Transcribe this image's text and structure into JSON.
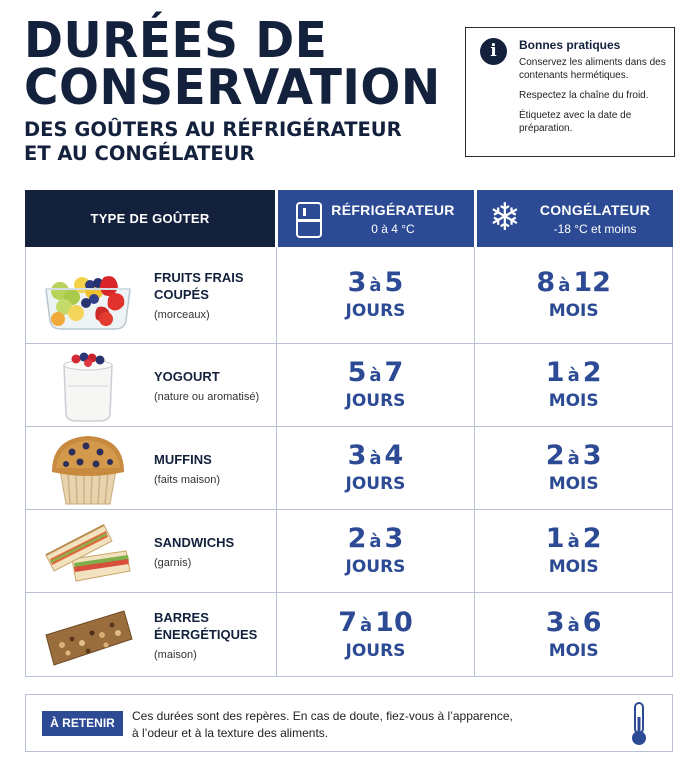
{
  "header": {
    "title_line1": "DURÉES DE",
    "title_line2": "CONSERVATION",
    "subtitle_line1": "DES GOÛTERS AU RÉFRIGÉRATEUR",
    "subtitle_line2": "ET AU CONGÉLATEUR"
  },
  "tips": {
    "icon": "info-icon",
    "title": "Bonnes pratiques",
    "items": [
      "Conservez les aliments dans des contenants hermétiques.",
      "Respectez la chaîne du froid.",
      "Étiquetez avec la date de préparation."
    ]
  },
  "table": {
    "col1": "TYPE DE GOÛTER",
    "col2": {
      "label": "RÉFRIGÉRATEUR",
      "range": "0 à 4 °C",
      "icon": "fridge-icon"
    },
    "col3": {
      "label": "CONGÉLATEUR",
      "range": "-18 °C et moins",
      "icon": "snowflake-icon"
    },
    "connector": "à",
    "rows": [
      {
        "name1": "FRUITS FRAIS",
        "name2": "COUPÉS",
        "desc": "(morceaux)",
        "fridge_min": "3",
        "fridge_max": "5",
        "fridge_unit": "JOURS",
        "freezer_min": "8",
        "freezer_max": "12",
        "freezer_unit": "MOIS",
        "icon": "fruit-bowl-image"
      },
      {
        "name1": "YOGOURT",
        "name2": "",
        "desc": "(nature ou aromatisé)",
        "fridge_min": "5",
        "fridge_max": "7",
        "fridge_unit": "JOURS",
        "freezer_min": "1",
        "freezer_max": "2",
        "freezer_unit": "MOIS",
        "icon": "yogurt-image"
      },
      {
        "name1": "MUFFINS",
        "name2": "",
        "desc": "(faits maison)",
        "fridge_min": "3",
        "fridge_max": "4",
        "fridge_unit": "JOURS",
        "freezer_min": "2",
        "freezer_max": "3",
        "freezer_unit": "MOIS",
        "icon": "muffin-image"
      },
      {
        "name1": "SANDWICHS",
        "name2": "",
        "desc": "(garnis)",
        "fridge_min": "2",
        "fridge_max": "3",
        "fridge_unit": "JOURS",
        "freezer_min": "1",
        "freezer_max": "2",
        "freezer_unit": "MOIS",
        "icon": "sandwich-image"
      },
      {
        "name1": "BARRES",
        "name2": "ÉNERGÉTIQUES",
        "desc": "(maison)",
        "fridge_min": "7",
        "fridge_max": "10",
        "fridge_unit": "JOURS",
        "freezer_min": "3",
        "freezer_max": "6",
        "freezer_unit": "MOIS",
        "icon": "granola-bar-image"
      }
    ]
  },
  "note": {
    "badge": "À RETENIR",
    "text_line1": "Ces durées sont des repères. En cas de doute, fiez-vous à l’apparence,",
    "text_line2": "à l’odeur et à la texture des aliments.",
    "icon": "thermometer-icon"
  },
  "colors": {
    "navy": "#14213d",
    "blue": "#2c4b94",
    "border": "#b9c2d4"
  }
}
